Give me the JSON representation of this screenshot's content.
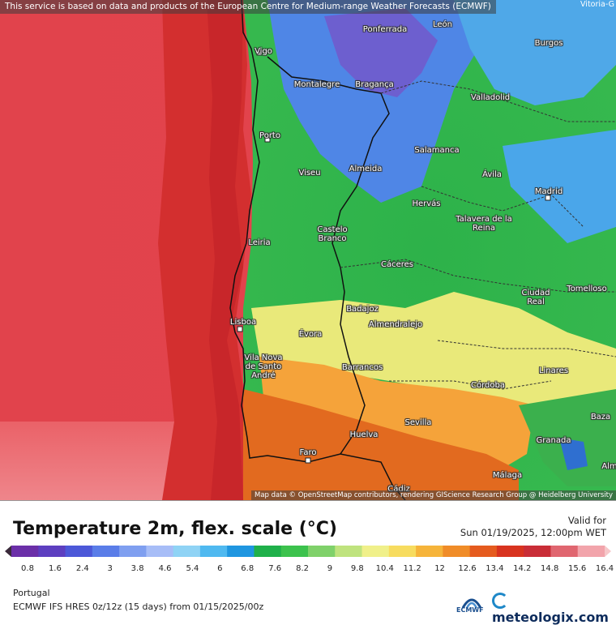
{
  "notice": "This service is based on data and products of the European Centre for Medium-range Weather Forecasts (ECMWF)",
  "corner_label": "Vitoria-G",
  "attribution": "Map data © OpenStreetMap contributors, rendering GIScience Research Group @ Heidelberg University",
  "cities": [
    "Vigo",
    "Ponferrada",
    "León",
    "Burgos",
    "Montalegre",
    "Bragança",
    "Valladolid",
    "Porto",
    "Salamanca",
    "Viseu",
    "Almeida",
    "Ávila",
    "Madrid",
    "Hervás",
    "Talavera de la Reina",
    "Castelo Branco",
    "Leiria",
    "Cáceres",
    "Tomelloso",
    "Ciudad Real",
    "Badajoz",
    "Almendralejo",
    "Lisboa",
    "Évora",
    "Vila Nova de Santo André",
    "Barrancos",
    "Linares",
    "Córdoba",
    "Baza",
    "Sevilla",
    "Huelva",
    "Granada",
    "Faro",
    "Málaga",
    "Cádiz",
    "Alm"
  ],
  "title": "Temperature 2m, flex. scale (°C)",
  "valid_label": "Valid for",
  "valid_time": "Sun 01/19/2025, 12:00pm WET",
  "unit": "°C",
  "scale_ticks": [
    "0.8",
    "1.6",
    "2.4",
    "3",
    "3.8",
    "4.6",
    "5.4",
    "6",
    "6.8",
    "7.6",
    "8.2",
    "9",
    "9.8",
    "10.4",
    "11.2",
    "12",
    "12.6",
    "13.4",
    "14.2",
    "14.8",
    "15.6",
    "16.4"
  ],
  "scale_colors": [
    "#6b2fa8",
    "#5d3fc0",
    "#4c58d8",
    "#5a7de8",
    "#7f9ff0",
    "#a7bdf7",
    "#8fd3f5",
    "#4fb9f0",
    "#1f96e0",
    "#1fb04a",
    "#3cc24d",
    "#7fd16a",
    "#bfe37e",
    "#f0f08a",
    "#f7dc5f",
    "#f6b43a",
    "#f08c28",
    "#e55b1e",
    "#d8331f",
    "#c92d37",
    "#e06670",
    "#f2a4ab"
  ],
  "region": "Portugal",
  "model": "ECMWF IFS HRES 0z/12z (15 days) from 01/15/2025/00z",
  "ecmwf_text": "ECMWF",
  "brand": "meteologix.com"
}
